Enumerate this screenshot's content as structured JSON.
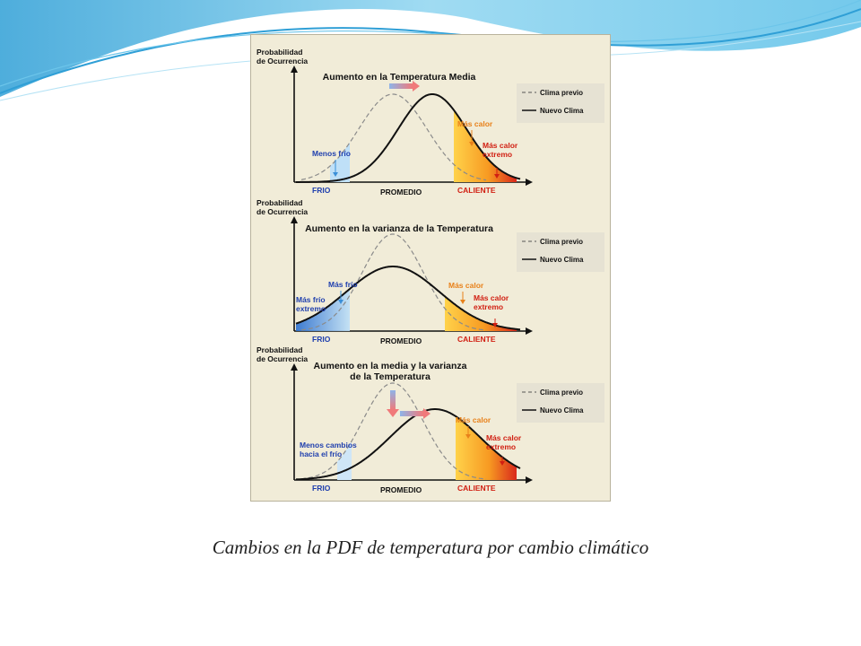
{
  "slide": {
    "caption": "Cambios en la PDF de temperatura por cambio climático"
  },
  "axis_label": [
    "Probabilidad",
    "de Ocurrencia"
  ],
  "legend": {
    "previous": "Clima previo",
    "new": "Nuevo Clima"
  },
  "x_labels": {
    "cold": "FRIO",
    "average": "PROMEDIO",
    "hot": "CALIENTE"
  },
  "panels": [
    {
      "title_lines": [
        "Aumento en la Temperatura Media"
      ],
      "labels": {
        "cold_change": [
          "Menos frío"
        ],
        "cold_extreme": [],
        "hot": [
          "Más calor"
        ],
        "hot_extreme": [
          "Más calor",
          "extremo"
        ]
      }
    },
    {
      "title_lines": [
        "Aumento en la varianza de la Temperatura"
      ],
      "labels": {
        "cold_change": [
          "Más frío"
        ],
        "cold_extreme": [
          "Más frío",
          "extremo"
        ],
        "hot": [
          "Más calor"
        ],
        "hot_extreme": [
          "Más calor",
          "extremo"
        ]
      }
    },
    {
      "title_lines": [
        "Aumento en la media y la varianza",
        "de la Temperatura"
      ],
      "labels": {
        "cold_change": [
          "Menos cambios",
          "hacia el frío"
        ],
        "cold_extreme": [],
        "hot": [
          "Más calor"
        ],
        "hot_extreme": [
          "Más calor",
          "extremo"
        ]
      }
    }
  ],
  "colors": {
    "slide_wave": "#4fb3e6",
    "figure_bg": "#f1ecd8",
    "legend_bg": "#e6e2d3",
    "cold_label": "#1f3fae",
    "hot_label": "#e8811a",
    "extreme_label": "#d11f12",
    "curve_new": "#111111",
    "curve_previous": "#8a8a8a"
  }
}
